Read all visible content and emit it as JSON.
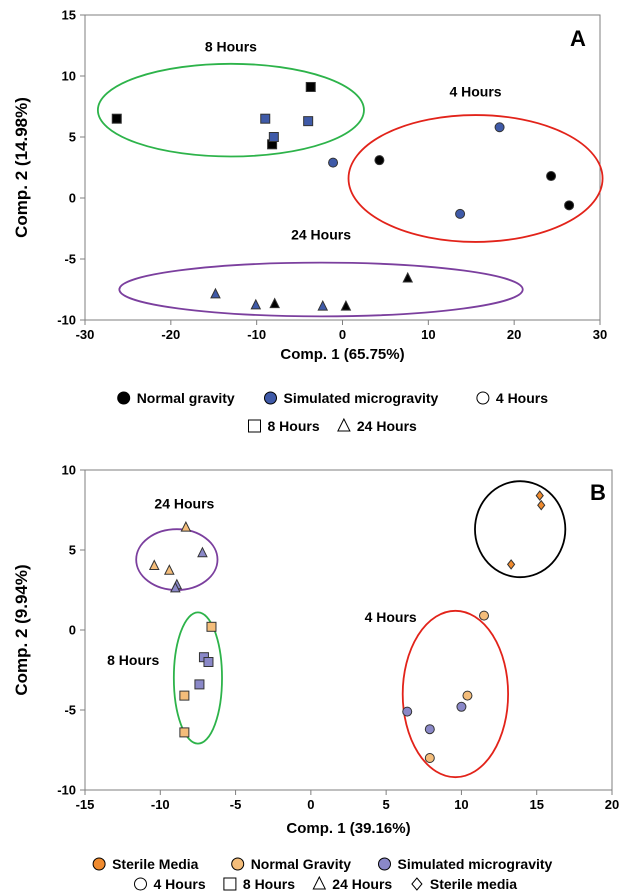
{
  "chart_data": [
    {
      "type": "scatter",
      "panel_label": "A",
      "xlabel": "Comp. 1 (65.75%)",
      "ylabel": "Comp. 2 (14.98%)",
      "xlim": [
        -30,
        30
      ],
      "ylim": [
        -10,
        15
      ],
      "xticks": [
        "-30",
        "-20",
        "-10",
        "0",
        "10",
        "20",
        "30"
      ],
      "yticks": [
        "-10",
        "-5",
        "0",
        "5",
        "10",
        "15"
      ],
      "grid": false,
      "series": [
        {
          "name": "Normal gravity",
          "color": "#000000",
          "points": [
            {
              "x": -26.3,
              "y": 6.5,
              "shape": "square"
            },
            {
              "x": -3.7,
              "y": 9.1,
              "shape": "square"
            },
            {
              "x": -8.2,
              "y": 4.4,
              "shape": "square"
            },
            {
              "x": 4.3,
              "y": 3.1,
              "shape": "circle"
            },
            {
              "x": 24.3,
              "y": 1.8,
              "shape": "circle"
            },
            {
              "x": 26.4,
              "y": -0.6,
              "shape": "circle"
            },
            {
              "x": 7.6,
              "y": -6.6,
              "shape": "triangle"
            },
            {
              "x": -7.9,
              "y": -8.7,
              "shape": "triangle"
            },
            {
              "x": 0.4,
              "y": -8.9,
              "shape": "triangle"
            }
          ]
        },
        {
          "name": "Simulated microgravity",
          "color": "#3f5aa8",
          "points": [
            {
              "x": -9.0,
              "y": 6.5,
              "shape": "square"
            },
            {
              "x": -8.0,
              "y": 5.0,
              "shape": "square"
            },
            {
              "x": -4.0,
              "y": 6.3,
              "shape": "square"
            },
            {
              "x": -1.1,
              "y": 2.9,
              "shape": "circle"
            },
            {
              "x": 18.3,
              "y": 5.8,
              "shape": "circle"
            },
            {
              "x": 13.7,
              "y": -1.3,
              "shape": "circle"
            },
            {
              "x": -14.8,
              "y": -7.9,
              "shape": "triangle"
            },
            {
              "x": -10.1,
              "y": -8.8,
              "shape": "triangle"
            },
            {
              "x": -2.3,
              "y": -8.9,
              "shape": "triangle"
            }
          ]
        }
      ],
      "groups": [
        {
          "label": "8 Hours",
          "color": "#2db34a",
          "cx": -13.0,
          "cy": 7.2,
          "rx": 15.5,
          "ry": 3.8,
          "label_x": -13.0,
          "label_y": 12.0
        },
        {
          "label": "4 Hours",
          "color": "#e2231a",
          "cx": 15.5,
          "cy": 1.6,
          "rx": 14.8,
          "ry": 5.2,
          "label_x": 15.5,
          "label_y": 8.3
        },
        {
          "label": "24 Hours",
          "color": "#7b3f9e",
          "cx": -2.5,
          "cy": -7.5,
          "rx": 23.5,
          "ry": 2.2,
          "label_x": -2.5,
          "label_y": -3.4
        }
      ],
      "legend": {
        "row1": [
          {
            "label": "Normal gravity",
            "marker": "circle",
            "fill": "#000000"
          },
          {
            "label": "Simulated microgravity",
            "marker": "circle",
            "fill": "#3f5aa8"
          },
          {
            "label": "4 Hours",
            "marker": "circle",
            "fill": "none"
          }
        ],
        "row2": [
          {
            "label": "8 Hours",
            "marker": "square",
            "fill": "none"
          },
          {
            "label": "24 Hours",
            "marker": "triangle",
            "fill": "none"
          }
        ]
      }
    },
    {
      "type": "scatter",
      "panel_label": "B",
      "xlabel": "Comp. 1 (39.16%)",
      "ylabel": "Comp. 2 (9.94%)",
      "xlim": [
        -15,
        20
      ],
      "ylim": [
        -10,
        10
      ],
      "xticks": [
        "-15",
        "-10",
        "-5",
        "0",
        "5",
        "10",
        "15",
        "20"
      ],
      "yticks": [
        "-10",
        "-5",
        "0",
        "5",
        "10"
      ],
      "grid": false,
      "series": [
        {
          "name": "Sterile Media",
          "color": "#ef8a2e",
          "points": [
            {
              "x": 15.2,
              "y": 8.4,
              "shape": "diamond"
            },
            {
              "x": 15.3,
              "y": 7.8,
              "shape": "diamond"
            },
            {
              "x": 13.3,
              "y": 4.1,
              "shape": "diamond"
            }
          ]
        },
        {
          "name": "Normal Gravity",
          "color": "#f4bd7a",
          "points": [
            {
              "x": 11.5,
              "y": 0.9,
              "shape": "circle"
            },
            {
              "x": 10.4,
              "y": -4.1,
              "shape": "circle"
            },
            {
              "x": 7.9,
              "y": -8.0,
              "shape": "circle"
            },
            {
              "x": -6.6,
              "y": 0.2,
              "shape": "square"
            },
            {
              "x": -8.4,
              "y": -4.1,
              "shape": "square"
            },
            {
              "x": -8.4,
              "y": -6.4,
              "shape": "square"
            },
            {
              "x": -8.3,
              "y": 6.4,
              "shape": "triangle"
            },
            {
              "x": -10.4,
              "y": 4.0,
              "shape": "triangle"
            },
            {
              "x": -9.4,
              "y": 3.7,
              "shape": "triangle"
            }
          ]
        },
        {
          "name": "Simulated microgravity",
          "color": "#8a88c8",
          "points": [
            {
              "x": 6.4,
              "y": -5.1,
              "shape": "circle"
            },
            {
              "x": 7.9,
              "y": -6.2,
              "shape": "circle"
            },
            {
              "x": 10.0,
              "y": -4.8,
              "shape": "circle"
            },
            {
              "x": -7.1,
              "y": -1.7,
              "shape": "square"
            },
            {
              "x": -6.8,
              "y": -2.0,
              "shape": "square"
            },
            {
              "x": -7.4,
              "y": -3.4,
              "shape": "square"
            },
            {
              "x": -7.2,
              "y": 4.8,
              "shape": "triangle"
            },
            {
              "x": -8.9,
              "y": 2.8,
              "shape": "triangle"
            },
            {
              "x": -9.0,
              "y": 2.6,
              "shape": "triangle"
            }
          ]
        }
      ],
      "groups": [
        {
          "label": "",
          "color": "#000000",
          "cx": 13.9,
          "cy": 6.3,
          "rx": 3.0,
          "ry": 3.0
        },
        {
          "label": "4 Hours",
          "color": "#e2231a",
          "cx": 9.6,
          "cy": -4.0,
          "rx": 3.5,
          "ry": 5.2,
          "label_x": 5.3,
          "label_y": 0.5
        },
        {
          "label": "24 Hours",
          "color": "#7b3f9e",
          "cx": -8.9,
          "cy": 4.4,
          "rx": 2.7,
          "ry": 1.9,
          "label_x": -8.4,
          "label_y": 7.6
        },
        {
          "label": "8 Hours",
          "color": "#2db34a",
          "cx": -7.5,
          "cy": -3.0,
          "rx": 1.6,
          "ry": 4.1,
          "label_x": -11.8,
          "label_y": -2.2
        }
      ],
      "legend": {
        "row1": [
          {
            "label": "Sterile Media",
            "marker": "circle",
            "fill": "#ef8a2e"
          },
          {
            "label": "Normal Gravity",
            "marker": "circle",
            "fill": "#f4bd7a"
          },
          {
            "label": "Simulated microgravity",
            "marker": "circle",
            "fill": "#8a88c8"
          }
        ],
        "row2": [
          {
            "label": "4 Hours",
            "marker": "circle",
            "fill": "none"
          },
          {
            "label": "8 Hours",
            "marker": "square",
            "fill": "none"
          },
          {
            "label": "24 Hours",
            "marker": "triangle",
            "fill": "none"
          },
          {
            "label": "Sterile media",
            "marker": "diamond",
            "fill": "none"
          }
        ]
      }
    }
  ]
}
